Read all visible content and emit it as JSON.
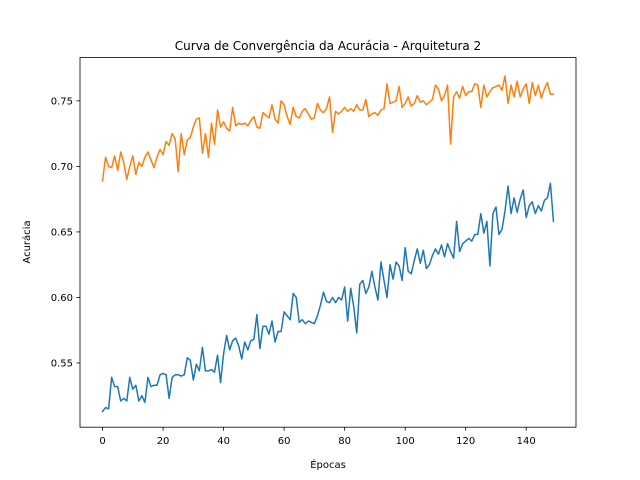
{
  "chart_data": {
    "type": "line",
    "title": "Curva de Convergência da Acurácia - Arquitetura 2",
    "xlabel": "Épocas",
    "ylabel": "Acurácia",
    "x": [
      0,
      1,
      2,
      3,
      4,
      5,
      6,
      7,
      8,
      9,
      10,
      11,
      12,
      13,
      14,
      15,
      16,
      17,
      18,
      19,
      20,
      21,
      22,
      23,
      24,
      25,
      26,
      27,
      28,
      29,
      30,
      31,
      32,
      33,
      34,
      35,
      36,
      37,
      38,
      39,
      40,
      41,
      42,
      43,
      44,
      45,
      46,
      47,
      48,
      49,
      50,
      51,
      52,
      53,
      54,
      55,
      56,
      57,
      58,
      59,
      60,
      61,
      62,
      63,
      64,
      65,
      66,
      67,
      68,
      69,
      70,
      71,
      72,
      73,
      74,
      75,
      76,
      77,
      78,
      79,
      80,
      81,
      82,
      83,
      84,
      85,
      86,
      87,
      88,
      89,
      90,
      91,
      92,
      93,
      94,
      95,
      96,
      97,
      98,
      99,
      100,
      101,
      102,
      103,
      104,
      105,
      106,
      107,
      108,
      109,
      110,
      111,
      112,
      113,
      114,
      115,
      116,
      117,
      118,
      119,
      120,
      121,
      122,
      123,
      124,
      125,
      126,
      127,
      128,
      129,
      130,
      131,
      132,
      133,
      134,
      135,
      136,
      137,
      138,
      139,
      140,
      141,
      142,
      143,
      144,
      145,
      146,
      147,
      148,
      149
    ],
    "series": [
      {
        "color": "#1f77b4",
        "values": [
          0.513,
          0.516,
          0.515,
          0.539,
          0.532,
          0.532,
          0.521,
          0.523,
          0.521,
          0.539,
          0.53,
          0.533,
          0.521,
          0.525,
          0.52,
          0.539,
          0.532,
          0.533,
          0.533,
          0.541,
          0.542,
          0.541,
          0.523,
          0.539,
          0.541,
          0.541,
          0.54,
          0.541,
          0.554,
          0.552,
          0.537,
          0.549,
          0.544,
          0.562,
          0.544,
          0.544,
          0.545,
          0.543,
          0.556,
          0.535,
          0.557,
          0.571,
          0.56,
          0.567,
          0.569,
          0.563,
          0.553,
          0.566,
          0.56,
          0.567,
          0.568,
          0.587,
          0.561,
          0.578,
          0.578,
          0.572,
          0.582,
          0.566,
          0.574,
          0.574,
          0.589,
          0.586,
          0.583,
          0.603,
          0.6,
          0.581,
          0.583,
          0.58,
          0.582,
          0.581,
          0.58,
          0.586,
          0.594,
          0.604,
          0.597,
          0.596,
          0.6,
          0.596,
          0.6,
          0.598,
          0.608,
          0.582,
          0.607,
          0.593,
          0.573,
          0.61,
          0.613,
          0.603,
          0.608,
          0.62,
          0.608,
          0.598,
          0.627,
          0.613,
          0.6,
          0.625,
          0.614,
          0.627,
          0.624,
          0.613,
          0.638,
          0.62,
          0.618,
          0.628,
          0.637,
          0.626,
          0.636,
          0.622,
          0.625,
          0.632,
          0.637,
          0.633,
          0.64,
          0.631,
          0.641,
          0.635,
          0.63,
          0.658,
          0.635,
          0.641,
          0.643,
          0.645,
          0.643,
          0.648,
          0.648,
          0.664,
          0.649,
          0.658,
          0.624,
          0.664,
          0.669,
          0.648,
          0.652,
          0.666,
          0.685,
          0.664,
          0.676,
          0.665,
          0.675,
          0.682,
          0.661,
          0.67,
          0.673,
          0.664,
          0.67,
          0.666,
          0.674,
          0.676,
          0.687,
          0.658
        ]
      },
      {
        "color": "#ff7f0e",
        "values": [
          0.689,
          0.707,
          0.7,
          0.699,
          0.708,
          0.697,
          0.711,
          0.703,
          0.69,
          0.7,
          0.708,
          0.694,
          0.703,
          0.7,
          0.707,
          0.711,
          0.705,
          0.699,
          0.707,
          0.713,
          0.709,
          0.719,
          0.716,
          0.725,
          0.721,
          0.696,
          0.725,
          0.709,
          0.72,
          0.722,
          0.73,
          0.736,
          0.737,
          0.71,
          0.725,
          0.707,
          0.733,
          0.717,
          0.743,
          0.73,
          0.734,
          0.729,
          0.727,
          0.745,
          0.731,
          0.733,
          0.732,
          0.733,
          0.731,
          0.735,
          0.738,
          0.73,
          0.729,
          0.741,
          0.739,
          0.737,
          0.747,
          0.736,
          0.733,
          0.75,
          0.747,
          0.738,
          0.732,
          0.745,
          0.738,
          0.737,
          0.742,
          0.744,
          0.74,
          0.736,
          0.737,
          0.748,
          0.743,
          0.741,
          0.744,
          0.753,
          0.726,
          0.742,
          0.74,
          0.742,
          0.745,
          0.742,
          0.744,
          0.742,
          0.747,
          0.743,
          0.743,
          0.751,
          0.738,
          0.74,
          0.741,
          0.739,
          0.743,
          0.744,
          0.763,
          0.748,
          0.749,
          0.75,
          0.761,
          0.745,
          0.748,
          0.753,
          0.746,
          0.748,
          0.754,
          0.749,
          0.75,
          0.747,
          0.749,
          0.751,
          0.762,
          0.759,
          0.75,
          0.754,
          0.762,
          0.717,
          0.753,
          0.757,
          0.752,
          0.761,
          0.754,
          0.757,
          0.757,
          0.763,
          0.762,
          0.745,
          0.762,
          0.753,
          0.757,
          0.76,
          0.761,
          0.762,
          0.758,
          0.769,
          0.748,
          0.762,
          0.753,
          0.765,
          0.753,
          0.759,
          0.763,
          0.748,
          0.764,
          0.754,
          0.762,
          0.752,
          0.759,
          0.764,
          0.755,
          0.755
        ]
      }
    ],
    "xlim": [
      -7.45,
      156.45
    ],
    "xticks": [
      0,
      20,
      40,
      60,
      80,
      100,
      120,
      140
    ],
    "ylim": [
      0.501,
      0.783
    ],
    "yticks": [
      0.55,
      {
        "value": 0.6,
        "label": "0.60"
      },
      0.65,
      {
        "value": 0.7,
        "label": "0.70"
      },
      0.75
    ],
    "grid": false
  }
}
